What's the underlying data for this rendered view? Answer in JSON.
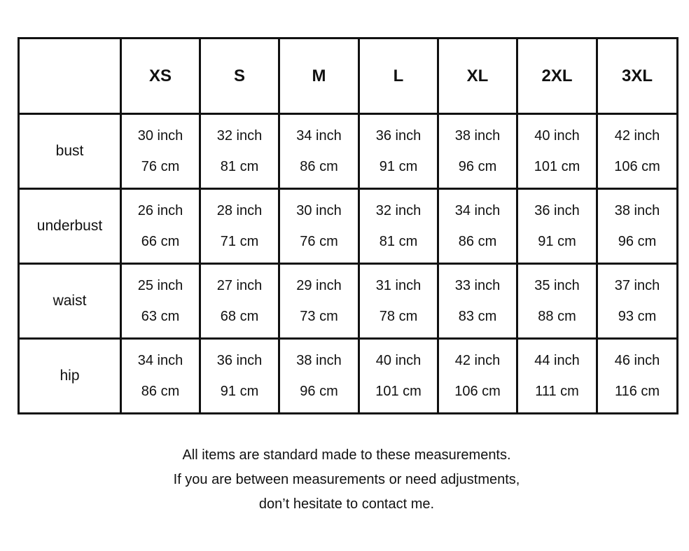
{
  "sizes": [
    "XS",
    "S",
    "M",
    "L",
    "XL",
    "2XL",
    "3XL"
  ],
  "rows": [
    {
      "label": "bust",
      "values": [
        [
          "30 inch",
          "76 cm"
        ],
        [
          "32 inch",
          "81 cm"
        ],
        [
          "34 inch",
          "86 cm"
        ],
        [
          "36 inch",
          "91 cm"
        ],
        [
          "38 inch",
          "96 cm"
        ],
        [
          "40 inch",
          "101 cm"
        ],
        [
          "42 inch",
          "106 cm"
        ]
      ]
    },
    {
      "label": "underbust",
      "values": [
        [
          "26 inch",
          "66 cm"
        ],
        [
          "28 inch",
          "71 cm"
        ],
        [
          "30 inch",
          "76 cm"
        ],
        [
          "32 inch",
          "81 cm"
        ],
        [
          "34 inch",
          "86 cm"
        ],
        [
          "36 inch",
          "91 cm"
        ],
        [
          "38 inch",
          "96 cm"
        ]
      ]
    },
    {
      "label": "waist",
      "values": [
        [
          "25 inch",
          "63 cm"
        ],
        [
          "27 inch",
          "68 cm"
        ],
        [
          "29 inch",
          "73 cm"
        ],
        [
          "31 inch",
          "78 cm"
        ],
        [
          "33 inch",
          "83 cm"
        ],
        [
          "35 inch",
          "88 cm"
        ],
        [
          "37 inch",
          "93 cm"
        ]
      ]
    },
    {
      "label": "hip",
      "values": [
        [
          "34 inch",
          "86 cm"
        ],
        [
          "36 inch",
          "91 cm"
        ],
        [
          "38 inch",
          "96 cm"
        ],
        [
          "40 inch",
          "101 cm"
        ],
        [
          "42 inch",
          "106 cm"
        ],
        [
          "44 inch",
          "111 cm"
        ],
        [
          "46 inch",
          "116 cm"
        ]
      ]
    }
  ],
  "note": {
    "line1": "All items are standard made to these measurements.",
    "line2": "If you are between measurements or need adjustments,",
    "line3": "don’t hesitate to contact me."
  }
}
